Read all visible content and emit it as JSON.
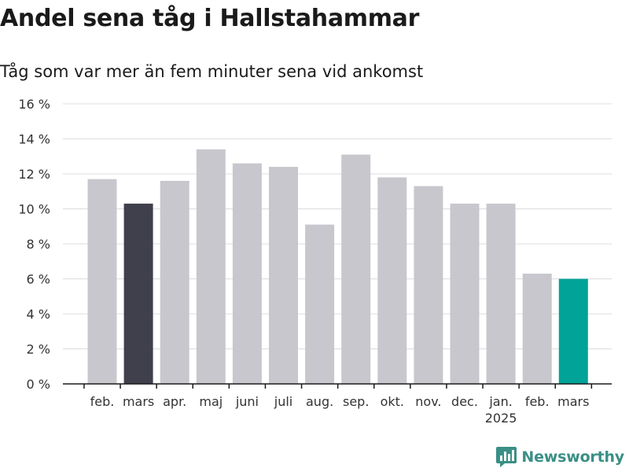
{
  "title": "Andel sena tåg i Hallstahammar",
  "subtitle": "Tåg som var mer än fem minuter sena vid ankomst",
  "brand": {
    "name": "Newsworthy",
    "icon": "newsworthy-logo-icon",
    "color": "#3a8f86"
  },
  "colors": {
    "default_bar": "#c8c7cd",
    "reference_bar": "#403f4c",
    "highlight_bar": "#00a398",
    "grid": "#dcdcdc",
    "axis": "#1a1a1a"
  },
  "chart_data": {
    "type": "bar",
    "categories": [
      "feb.",
      "mars",
      "apr.",
      "maj",
      "juni",
      "juli",
      "aug.",
      "sep.",
      "okt.",
      "nov.",
      "dec.",
      "jan.",
      "feb.",
      "mars"
    ],
    "year_labels": [
      {
        "label": "2025",
        "category_index": 11
      }
    ],
    "values": [
      11.7,
      10.3,
      11.6,
      13.4,
      12.6,
      12.4,
      9.1,
      13.1,
      11.8,
      11.3,
      10.3,
      10.3,
      6.3,
      6.0
    ],
    "bar_roles": [
      "default",
      "reference",
      "default",
      "default",
      "default",
      "default",
      "default",
      "default",
      "default",
      "default",
      "default",
      "default",
      "default",
      "highlight"
    ],
    "y_ticks": [
      "0 %",
      "2 %",
      "4 %",
      "6 %",
      "8 %",
      "10 %",
      "12 %",
      "14 %",
      "16 %"
    ],
    "ylim": [
      0,
      16
    ],
    "y_tick_step": 2,
    "grid": true,
    "legend": "none"
  }
}
